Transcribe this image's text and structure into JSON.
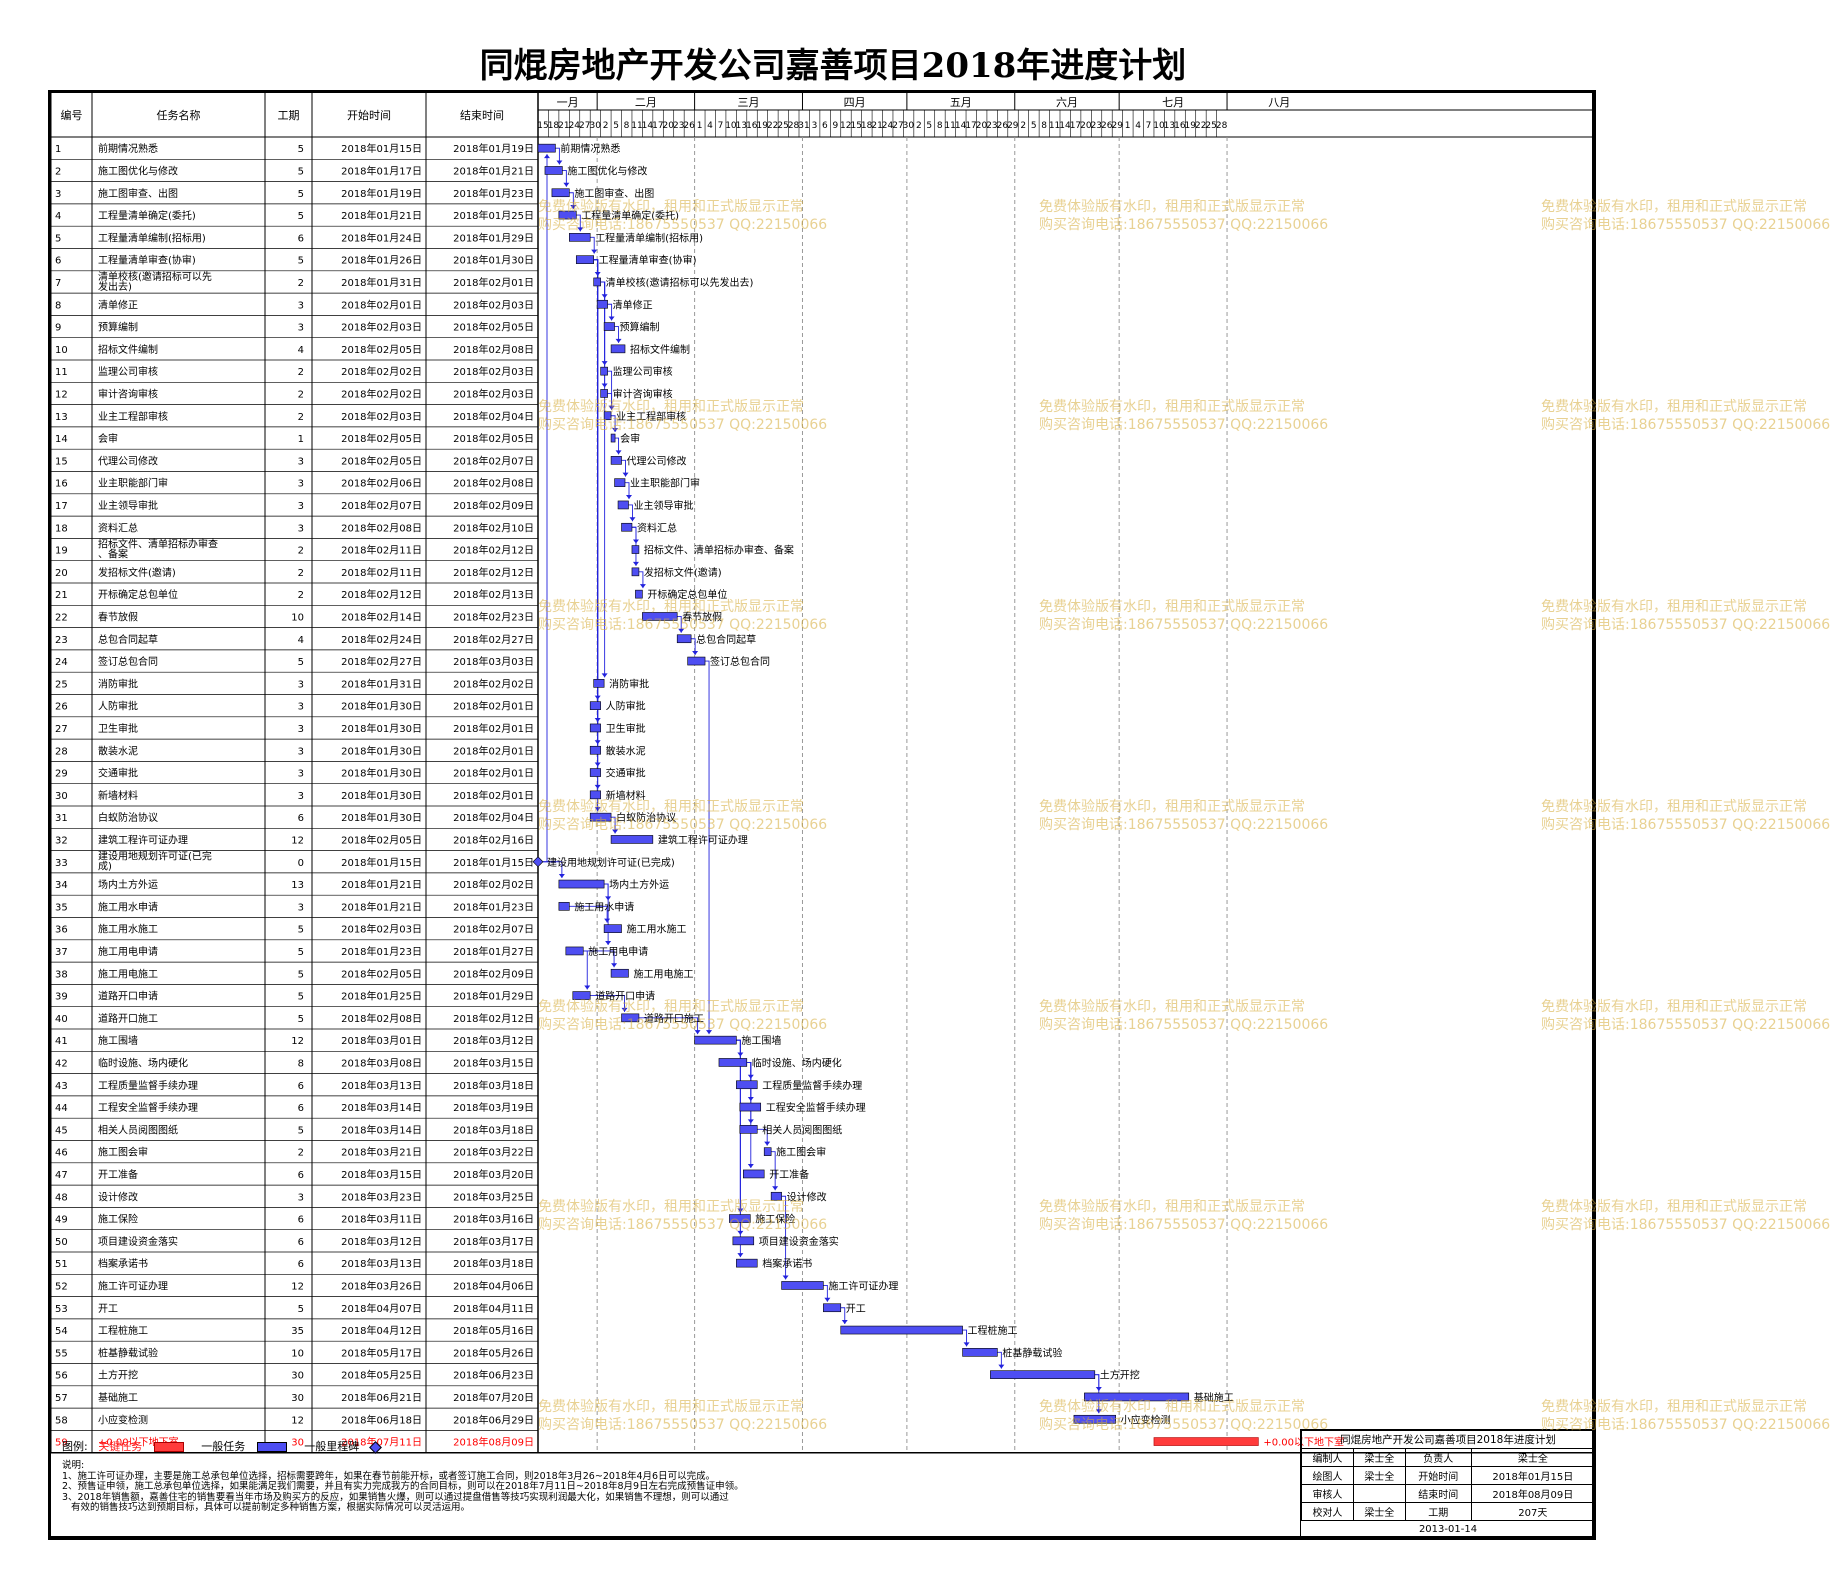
{
  "title": "同焜房地产开发公司嘉善项目2018年进度计划",
  "columns": {
    "id": "编号",
    "name": "任务名称",
    "duration": "工期",
    "start": "开始时间",
    "end": "结束时间"
  },
  "months": [
    "一月",
    "二月",
    "三月",
    "四月",
    "五月",
    "六月",
    "七月",
    "八月"
  ],
  "colors": {
    "critical": "#ff3b3b",
    "task": "#4e4ef2",
    "link": "#2222dd",
    "wm": "#d6ac38"
  },
  "chart_data": {
    "type": "gantt",
    "timeline_start": "2018-01-15",
    "timeline_end": "2018-08-28",
    "axis_days": [
      "15",
      "18",
      "21",
      "24",
      "27",
      "30",
      "2",
      "5",
      "8",
      "11",
      "14",
      "17",
      "20",
      "23",
      "26",
      "1",
      "4",
      "7",
      "10",
      "13",
      "16",
      "19",
      "22",
      "25",
      "28",
      "31",
      "3",
      "6",
      "9",
      "12",
      "15",
      "18",
      "21",
      "24",
      "27",
      "30",
      "2",
      "5",
      "8",
      "11",
      "14",
      "17",
      "20",
      "23",
      "26",
      "29",
      "2",
      "5",
      "8",
      "11",
      "14",
      "17",
      "20",
      "23",
      "26",
      "29",
      "1",
      "4",
      "7",
      "10",
      "13",
      "16",
      "19",
      "22",
      "25",
      "28"
    ],
    "tasks": [
      {
        "id": "1",
        "name": "前期情况熟悉",
        "dur": "5",
        "start": "2018年01月15日",
        "end": "2018年01月19日",
        "s": "2018-01-15",
        "e": "2018-01-19"
      },
      {
        "id": "2",
        "name": "施工图优化与修改",
        "dur": "5",
        "start": "2018年01月17日",
        "end": "2018年01月21日",
        "s": "2018-01-17",
        "e": "2018-01-21"
      },
      {
        "id": "3",
        "name": "施工图审查、出图",
        "dur": "5",
        "start": "2018年01月19日",
        "end": "2018年01月23日",
        "s": "2018-01-19",
        "e": "2018-01-23"
      },
      {
        "id": "4",
        "name": "工程量清单确定(委托)",
        "dur": "5",
        "start": "2018年01月21日",
        "end": "2018年01月25日",
        "s": "2018-01-21",
        "e": "2018-01-25"
      },
      {
        "id": "5",
        "name": "工程量清单编制(招标用)",
        "dur": "6",
        "start": "2018年01月24日",
        "end": "2018年01月29日",
        "s": "2018-01-24",
        "e": "2018-01-29"
      },
      {
        "id": "6",
        "name": "工程量清单审查(协审)",
        "dur": "5",
        "start": "2018年01月26日",
        "end": "2018年01月30日",
        "s": "2018-01-26",
        "e": "2018-01-30"
      },
      {
        "id": "7",
        "name": "清单校核(邀请招标可以先发出去)",
        "dur": "2",
        "start": "2018年01月31日",
        "end": "2018年02月01日",
        "s": "2018-01-31",
        "e": "2018-02-01"
      },
      {
        "id": "8",
        "name": "清单修正",
        "dur": "3",
        "start": "2018年02月01日",
        "end": "2018年02月03日",
        "s": "2018-02-01",
        "e": "2018-02-03"
      },
      {
        "id": "9",
        "name": "预算编制",
        "dur": "3",
        "start": "2018年02月03日",
        "end": "2018年02月05日",
        "s": "2018-02-03",
        "e": "2018-02-05"
      },
      {
        "id": "10",
        "name": "招标文件编制",
        "dur": "4",
        "start": "2018年02月05日",
        "end": "2018年02月08日",
        "s": "2018-02-05",
        "e": "2018-02-08"
      },
      {
        "id": "11",
        "name": "监理公司审核",
        "dur": "2",
        "start": "2018年02月02日",
        "end": "2018年02月03日",
        "s": "2018-02-02",
        "e": "2018-02-03"
      },
      {
        "id": "12",
        "name": "审计咨询审核",
        "dur": "2",
        "start": "2018年02月02日",
        "end": "2018年02月03日",
        "s": "2018-02-02",
        "e": "2018-02-03"
      },
      {
        "id": "13",
        "name": "业主工程部审核",
        "dur": "2",
        "start": "2018年02月03日",
        "end": "2018年02月04日",
        "s": "2018-02-03",
        "e": "2018-02-04"
      },
      {
        "id": "14",
        "name": "会审",
        "dur": "1",
        "start": "2018年02月05日",
        "end": "2018年02月05日",
        "s": "2018-02-05",
        "e": "2018-02-05"
      },
      {
        "id": "15",
        "name": "代理公司修改",
        "dur": "3",
        "start": "2018年02月05日",
        "end": "2018年02月07日",
        "s": "2018-02-05",
        "e": "2018-02-07"
      },
      {
        "id": "16",
        "name": "业主职能部门审",
        "dur": "3",
        "start": "2018年02月06日",
        "end": "2018年02月08日",
        "s": "2018-02-06",
        "e": "2018-02-08"
      },
      {
        "id": "17",
        "name": "业主领导审批",
        "dur": "3",
        "start": "2018年02月07日",
        "end": "2018年02月09日",
        "s": "2018-02-07",
        "e": "2018-02-09"
      },
      {
        "id": "18",
        "name": "资料汇总",
        "dur": "3",
        "start": "2018年02月08日",
        "end": "2018年02月10日",
        "s": "2018-02-08",
        "e": "2018-02-10"
      },
      {
        "id": "19",
        "name": "招标文件、清单招标办审查、备案",
        "dur": "2",
        "start": "2018年02月11日",
        "end": "2018年02月12日",
        "s": "2018-02-11",
        "e": "2018-02-12"
      },
      {
        "id": "20",
        "name": "发招标文件(邀请)",
        "dur": "2",
        "start": "2018年02月11日",
        "end": "2018年02月12日",
        "s": "2018-02-11",
        "e": "2018-02-12"
      },
      {
        "id": "21",
        "name": "开标确定总包单位",
        "dur": "2",
        "start": "2018年02月12日",
        "end": "2018年02月13日",
        "s": "2018-02-12",
        "e": "2018-02-13"
      },
      {
        "id": "22",
        "name": "春节放假",
        "dur": "10",
        "start": "2018年02月14日",
        "end": "2018年02月23日",
        "s": "2018-02-14",
        "e": "2018-02-23"
      },
      {
        "id": "23",
        "name": "总包合同起草",
        "dur": "4",
        "start": "2018年02月24日",
        "end": "2018年02月27日",
        "s": "2018-02-24",
        "e": "2018-02-27"
      },
      {
        "id": "24",
        "name": "签订总包合同",
        "dur": "5",
        "start": "2018年02月27日",
        "end": "2018年03月03日",
        "s": "2018-02-27",
        "e": "2018-03-03"
      },
      {
        "id": "25",
        "name": "消防审批",
        "dur": "3",
        "start": "2018年01月31日",
        "end": "2018年02月02日",
        "s": "2018-01-31",
        "e": "2018-02-02"
      },
      {
        "id": "26",
        "name": "人防审批",
        "dur": "3",
        "start": "2018年01月30日",
        "end": "2018年02月01日",
        "s": "2018-01-30",
        "e": "2018-02-01"
      },
      {
        "id": "27",
        "name": "卫生审批",
        "dur": "3",
        "start": "2018年01月30日",
        "end": "2018年02月01日",
        "s": "2018-01-30",
        "e": "2018-02-01"
      },
      {
        "id": "28",
        "name": "散装水泥",
        "dur": "3",
        "start": "2018年01月30日",
        "end": "2018年02月01日",
        "s": "2018-01-30",
        "e": "2018-02-01"
      },
      {
        "id": "29",
        "name": "交通审批",
        "dur": "3",
        "start": "2018年01月30日",
        "end": "2018年02月01日",
        "s": "2018-01-30",
        "e": "2018-02-01"
      },
      {
        "id": "30",
        "name": "新墙材料",
        "dur": "3",
        "start": "2018年01月30日",
        "end": "2018年02月01日",
        "s": "2018-01-30",
        "e": "2018-02-01"
      },
      {
        "id": "31",
        "name": "白蚁防治协议",
        "dur": "6",
        "start": "2018年01月30日",
        "end": "2018年02月04日",
        "s": "2018-01-30",
        "e": "2018-02-04"
      },
      {
        "id": "32",
        "name": "建筑工程许可证办理",
        "dur": "12",
        "start": "2018年02月05日",
        "end": "2018年02月16日",
        "s": "2018-02-05",
        "e": "2018-02-16"
      },
      {
        "id": "33",
        "name": "建设用地规划许可证(已完成)",
        "dur": "0",
        "start": "2018年01月15日",
        "end": "2018年01月15日",
        "s": "2018-01-15",
        "e": "2018-01-15",
        "milestone": true
      },
      {
        "id": "34",
        "name": "场内土方外运",
        "dur": "13",
        "start": "2018年01月21日",
        "end": "2018年02月02日",
        "s": "2018-01-21",
        "e": "2018-02-02"
      },
      {
        "id": "35",
        "name": "施工用水申请",
        "dur": "3",
        "start": "2018年01月21日",
        "end": "2018年01月23日",
        "s": "2018-01-21",
        "e": "2018-01-23"
      },
      {
        "id": "36",
        "name": "施工用水施工",
        "dur": "5",
        "start": "2018年02月03日",
        "end": "2018年02月07日",
        "s": "2018-02-03",
        "e": "2018-02-07"
      },
      {
        "id": "37",
        "name": "施工用电申请",
        "dur": "5",
        "start": "2018年01月23日",
        "end": "2018年01月27日",
        "s": "2018-01-23",
        "e": "2018-01-27"
      },
      {
        "id": "38",
        "name": "施工用电施工",
        "dur": "5",
        "start": "2018年02月05日",
        "end": "2018年02月09日",
        "s": "2018-02-05",
        "e": "2018-02-09"
      },
      {
        "id": "39",
        "name": "道路开口申请",
        "dur": "5",
        "start": "2018年01月25日",
        "end": "2018年01月29日",
        "s": "2018-01-25",
        "e": "2018-01-29"
      },
      {
        "id": "40",
        "name": "道路开口施工",
        "dur": "5",
        "start": "2018年02月08日",
        "end": "2018年02月12日",
        "s": "2018-02-08",
        "e": "2018-02-12"
      },
      {
        "id": "41",
        "name": "施工围墙",
        "dur": "12",
        "start": "2018年03月01日",
        "end": "2018年03月12日",
        "s": "2018-03-01",
        "e": "2018-03-12"
      },
      {
        "id": "42",
        "name": "临时设施、场内硬化",
        "dur": "8",
        "start": "2018年03月08日",
        "end": "2018年03月15日",
        "s": "2018-03-08",
        "e": "2018-03-15"
      },
      {
        "id": "43",
        "name": "工程质量监督手续办理",
        "dur": "6",
        "start": "2018年03月13日",
        "end": "2018年03月18日",
        "s": "2018-03-13",
        "e": "2018-03-18"
      },
      {
        "id": "44",
        "name": "工程安全监督手续办理",
        "dur": "6",
        "start": "2018年03月14日",
        "end": "2018年03月19日",
        "s": "2018-03-14",
        "e": "2018-03-19"
      },
      {
        "id": "45",
        "name": "相关人员阅图图纸",
        "dur": "5",
        "start": "2018年03月14日",
        "end": "2018年03月18日",
        "s": "2018-03-14",
        "e": "2018-03-18"
      },
      {
        "id": "46",
        "name": "施工图会审",
        "dur": "2",
        "start": "2018年03月21日",
        "end": "2018年03月22日",
        "s": "2018-03-21",
        "e": "2018-03-22"
      },
      {
        "id": "47",
        "name": "开工准备",
        "dur": "6",
        "start": "2018年03月15日",
        "end": "2018年03月20日",
        "s": "2018-03-15",
        "e": "2018-03-20"
      },
      {
        "id": "48",
        "name": "设计修改",
        "dur": "3",
        "start": "2018年03月23日",
        "end": "2018年03月25日",
        "s": "2018-03-23",
        "e": "2018-03-25"
      },
      {
        "id": "49",
        "name": "施工保险",
        "dur": "6",
        "start": "2018年03月11日",
        "end": "2018年03月16日",
        "s": "2018-03-11",
        "e": "2018-03-16"
      },
      {
        "id": "50",
        "name": "项目建设资金落实",
        "dur": "6",
        "start": "2018年03月12日",
        "end": "2018年03月17日",
        "s": "2018-03-12",
        "e": "2018-03-17"
      },
      {
        "id": "51",
        "name": "档案承诺书",
        "dur": "6",
        "start": "2018年03月13日",
        "end": "2018年03月18日",
        "s": "2018-03-13",
        "e": "2018-03-18"
      },
      {
        "id": "52",
        "name": "施工许可证办理",
        "dur": "12",
        "start": "2018年03月26日",
        "end": "2018年04月06日",
        "s": "2018-03-26",
        "e": "2018-04-06"
      },
      {
        "id": "53",
        "name": "开工",
        "dur": "5",
        "start": "2018年04月07日",
        "end": "2018年04月11日",
        "s": "2018-04-07",
        "e": "2018-04-11"
      },
      {
        "id": "54",
        "name": "工程桩施工",
        "dur": "35",
        "start": "2018年04月12日",
        "end": "2018年05月16日",
        "s": "2018-04-12",
        "e": "2018-05-16"
      },
      {
        "id": "55",
        "name": "桩基静载试验",
        "dur": "10",
        "start": "2018年05月17日",
        "end": "2018年05月26日",
        "s": "2018-05-17",
        "e": "2018-05-26"
      },
      {
        "id": "56",
        "name": "土方开挖",
        "dur": "30",
        "start": "2018年05月25日",
        "end": "2018年06月23日",
        "s": "2018-05-25",
        "e": "2018-06-23"
      },
      {
        "id": "57",
        "name": "基础施工",
        "dur": "30",
        "start": "2018年06月21日",
        "end": "2018年07月20日",
        "s": "2018-06-21",
        "e": "2018-07-20"
      },
      {
        "id": "58",
        "name": "小应变检测",
        "dur": "12",
        "start": "2018年06月18日",
        "end": "2018年06月29日",
        "s": "2018-06-18",
        "e": "2018-06-29"
      },
      {
        "id": "59",
        "name": "+0.00以下地下室",
        "dur": "30",
        "start": "2018年07月11日",
        "end": "2018年08月09日",
        "s": "2018-07-11",
        "e": "2018-08-09",
        "critical": true
      }
    ],
    "links": [
      [
        33,
        1
      ],
      [
        33,
        34
      ],
      [
        1,
        2
      ],
      [
        2,
        3
      ],
      [
        3,
        4
      ],
      [
        4,
        5
      ],
      [
        5,
        6
      ],
      [
        6,
        7
      ],
      [
        7,
        8
      ],
      [
        8,
        9
      ],
      [
        9,
        10
      ],
      [
        7,
        11
      ],
      [
        7,
        12
      ],
      [
        11,
        13
      ],
      [
        12,
        13
      ],
      [
        13,
        14
      ],
      [
        14,
        15
      ],
      [
        15,
        16
      ],
      [
        16,
        17
      ],
      [
        17,
        18
      ],
      [
        18,
        19
      ],
      [
        18,
        20
      ],
      [
        20,
        21
      ],
      [
        22,
        23
      ],
      [
        23,
        24
      ],
      [
        24,
        41
      ],
      [
        7,
        25
      ],
      [
        6,
        26
      ],
      [
        6,
        27
      ],
      [
        6,
        28
      ],
      [
        6,
        29
      ],
      [
        6,
        30
      ],
      [
        6,
        31
      ],
      [
        31,
        32
      ],
      [
        34,
        35
      ],
      [
        35,
        36
      ],
      [
        34,
        37
      ],
      [
        37,
        38
      ],
      [
        37,
        39
      ],
      [
        39,
        40
      ],
      [
        40,
        41
      ],
      [
        41,
        42
      ],
      [
        42,
        43
      ],
      [
        42,
        44
      ],
      [
        42,
        45
      ],
      [
        45,
        46
      ],
      [
        42,
        47
      ],
      [
        46,
        48
      ],
      [
        41,
        49
      ],
      [
        41,
        50
      ],
      [
        41,
        51
      ],
      [
        48,
        52
      ],
      [
        52,
        53
      ],
      [
        53,
        54
      ],
      [
        54,
        55
      ],
      [
        55,
        56
      ],
      [
        56,
        57
      ],
      [
        56,
        58
      ]
    ]
  },
  "legend": {
    "label": "图例:",
    "critical": "关键任务",
    "task": "一般任务",
    "milestone": "一般里程碑"
  },
  "notes": "说明:\n1、施工许可证办理，主要是施工总承包单位选择，招标需要跨年，如果在春节前能开标，或者签订施工合同，则2018年3月26~2018年4月6日可以完成。\n2、预售证申领，施工总承包单位选择，如果能满足我们需要，并且有实力完成我方的合同目标，则可以在2018年7月11日~2018年8月9日左右完成预售证申领。\n3、2018年销售额，嘉善住宅的销售要看当年市场及购买方的反应，如果销售火爆，则可以通过提盘借售等技巧实现利润最大化，如果销售不理想，则可以通过\n   有效的销售技巧达到预期目标，具体可以提前制定多种销售方案，根据实际情况可以灵活运用。",
  "signature": {
    "caption": "同焜房地产开发公司嘉善项目2018年进度计划",
    "rows": [
      [
        "编制人",
        "梁士全",
        "负责人",
        "梁士全"
      ],
      [
        "绘图人",
        "梁士全",
        "开始时间",
        "2018年01月15日"
      ],
      [
        "审核人",
        "",
        "结束时间",
        "2018年08月09日"
      ],
      [
        "校对人",
        "梁士全",
        "工期",
        "207天"
      ]
    ],
    "date": "2013-01-14"
  },
  "watermark": {
    "line1": "免费体验版有水印，租用和正式版显示正常",
    "line2": "购买咨询电话:18675550537 QQ:22150066"
  }
}
